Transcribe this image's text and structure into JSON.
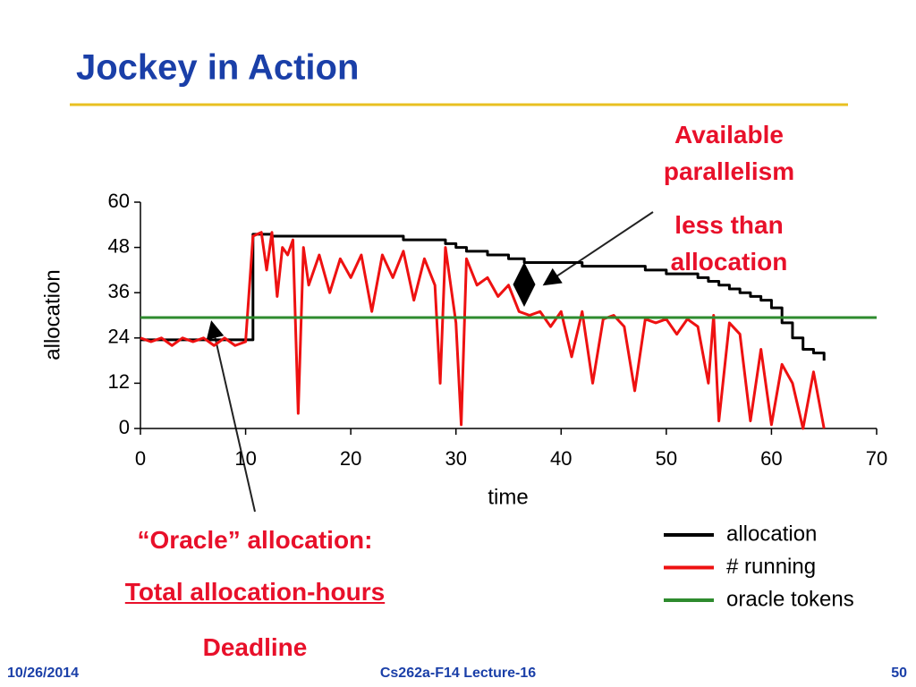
{
  "slide": {
    "title": "Jockey in Action",
    "footer": {
      "date": "10/26/2014",
      "course": "Cs262a-F14 Lecture-16",
      "page": "50"
    }
  },
  "chart_data": {
    "type": "line",
    "xlabel": "time",
    "ylabel": "allocation",
    "xlim": [
      0,
      70
    ],
    "xticks": [
      0,
      10,
      20,
      30,
      40,
      50,
      60,
      70
    ],
    "ylim": [
      0,
      60
    ],
    "yticks": [
      0,
      12,
      24,
      36,
      48,
      60
    ],
    "legend": "bottom-right",
    "annotations": [
      "Available parallelism",
      "less than allocation",
      "“Oracle” allocation:",
      "Total allocation-hours",
      "Deadline"
    ],
    "series": [
      {
        "name": "allocation",
        "color": "#000000",
        "step": true,
        "x": [
          0,
          10.7,
          12.5,
          25,
          29,
          30,
          31,
          33,
          35,
          36.5,
          42,
          48,
          50,
          53,
          54,
          55,
          56,
          57,
          58,
          59,
          60,
          61,
          62,
          63,
          64,
          65
        ],
        "values": [
          23.5,
          51.5,
          51,
          50,
          49,
          48,
          47,
          46,
          45,
          44,
          43,
          42,
          41,
          40,
          39,
          38,
          37,
          36,
          35,
          34,
          32,
          28,
          24,
          21,
          20,
          18
        ]
      },
      {
        "name": "# running",
        "color": "#ee1111",
        "step": false,
        "x": [
          0,
          1,
          2,
          3,
          4,
          5,
          6,
          7,
          8,
          9,
          10,
          10.7,
          11.5,
          12,
          12.5,
          13,
          13.5,
          14,
          14.5,
          15,
          15.5,
          16,
          17,
          18,
          19,
          20,
          21,
          22,
          23,
          24,
          25,
          26,
          27,
          28,
          28.5,
          29,
          30,
          30.5,
          31,
          32,
          33,
          34,
          35,
          36,
          37,
          38,
          39,
          40,
          41,
          42,
          43,
          44,
          45,
          46,
          47,
          48,
          49,
          50,
          51,
          52,
          53,
          54,
          54.5,
          55,
          56,
          57,
          58,
          59,
          60,
          61,
          62,
          63,
          64,
          65
        ],
        "values": [
          24,
          23,
          24,
          22,
          24,
          23,
          24,
          22,
          24,
          22,
          23,
          51,
          52,
          42,
          52,
          35,
          48,
          46,
          50,
          4,
          48,
          38,
          46,
          36,
          45,
          40,
          46,
          31,
          46,
          40,
          47,
          34,
          45,
          38,
          12,
          48,
          28,
          1,
          45,
          38,
          40,
          35,
          38,
          31,
          30,
          31,
          27,
          31,
          19,
          31,
          12,
          29,
          30,
          27,
          10,
          29,
          28,
          29,
          25,
          29,
          27,
          12,
          30,
          2,
          28,
          25,
          2,
          21,
          1,
          17,
          12,
          0,
          15,
          0
        ]
      },
      {
        "name": "oracle tokens",
        "color": "#2e8b2e",
        "step": false,
        "x": [
          0,
          70
        ],
        "values": [
          29.4,
          29.4
        ]
      }
    ]
  }
}
